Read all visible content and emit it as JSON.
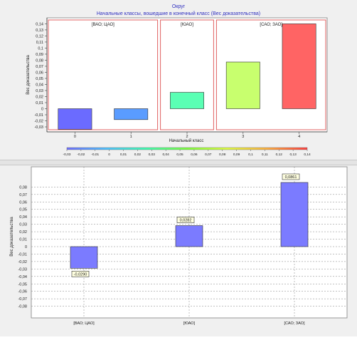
{
  "top": {
    "title": "Округ",
    "subtitle": "Начальные классы, вошедшие в конечный класс (Вес доказательства)",
    "ylabel": "Вес доказательства",
    "xlabel": "Начальный класс",
    "legend_ticks": [
      "-0,03",
      "-0,02",
      "-0,01",
      "0",
      "0,01",
      "0,02",
      "0,03",
      "0,04",
      "0,05",
      "0,06",
      "0,07",
      "0,08",
      "0,09",
      "0,1",
      "0,11",
      "0,12",
      "0,13",
      "0,14"
    ],
    "legend_colors": [
      "#7070ff",
      "#4fc3ff",
      "#40ffb0",
      "#7fff40",
      "#e0ff40",
      "#ffb040",
      "#ff4040"
    ]
  },
  "bottom": {
    "ylabel": "Вес доказательства"
  },
  "chart_data": [
    {
      "type": "bar",
      "title": "Округ",
      "subtitle": "Начальные классы, вошедшие в конечный класс (Вес доказательства)",
      "xlabel": "Начальный класс",
      "ylabel": "Вес доказательства",
      "categories": [
        "0",
        "1",
        "2",
        "3",
        "4"
      ],
      "values": [
        -0.034,
        -0.018,
        0.027,
        0.077,
        0.14
      ],
      "colors": [
        "#6b6bff",
        "#5a9cff",
        "#5affb4",
        "#c8ff6e",
        "#ff6464"
      ],
      "groups": [
        {
          "label": "[ВАО; ЦАО]",
          "categories": [
            "0",
            "1"
          ]
        },
        {
          "label": "[ЮАО]",
          "categories": [
            "2"
          ]
        },
        {
          "label": "[САО; ЗАО]",
          "categories": [
            "3",
            "4"
          ]
        }
      ],
      "yticks": [
        "0,14",
        "0,13",
        "0,12",
        "0,11",
        "0,1",
        "0,09",
        "0,08",
        "0,07",
        "0,06",
        "0,05",
        "0,04",
        "0,03",
        "0,02",
        "0,01",
        "0",
        "-0,01",
        "-0,02",
        "-0,03"
      ],
      "ylim": [
        -0.035,
        0.145
      ],
      "grid": false,
      "legend": "bottom color scale"
    },
    {
      "type": "bar",
      "ylabel": "Вес доказательства",
      "categories": [
        "[ВАО; ЦАО]",
        "[ЮАО]",
        "[САО; ЗАО]"
      ],
      "values": [
        -0.029,
        0.0282,
        0.0861
      ],
      "data_labels": [
        "-0,0290",
        "0,0282",
        "0,0861"
      ],
      "bar_color": "#7b7bff",
      "yticks": [
        "0,08",
        "0,07",
        "0,06",
        "0,05",
        "0,04",
        "0,03",
        "0,02",
        "0,01",
        "0",
        "-0,01",
        "-0,02",
        "-0,03",
        "-0,04",
        "-0,05",
        "-0,06",
        "-0,07",
        "-0,08"
      ],
      "ylim": [
        -0.088,
        0.088
      ],
      "grid": true
    }
  ]
}
